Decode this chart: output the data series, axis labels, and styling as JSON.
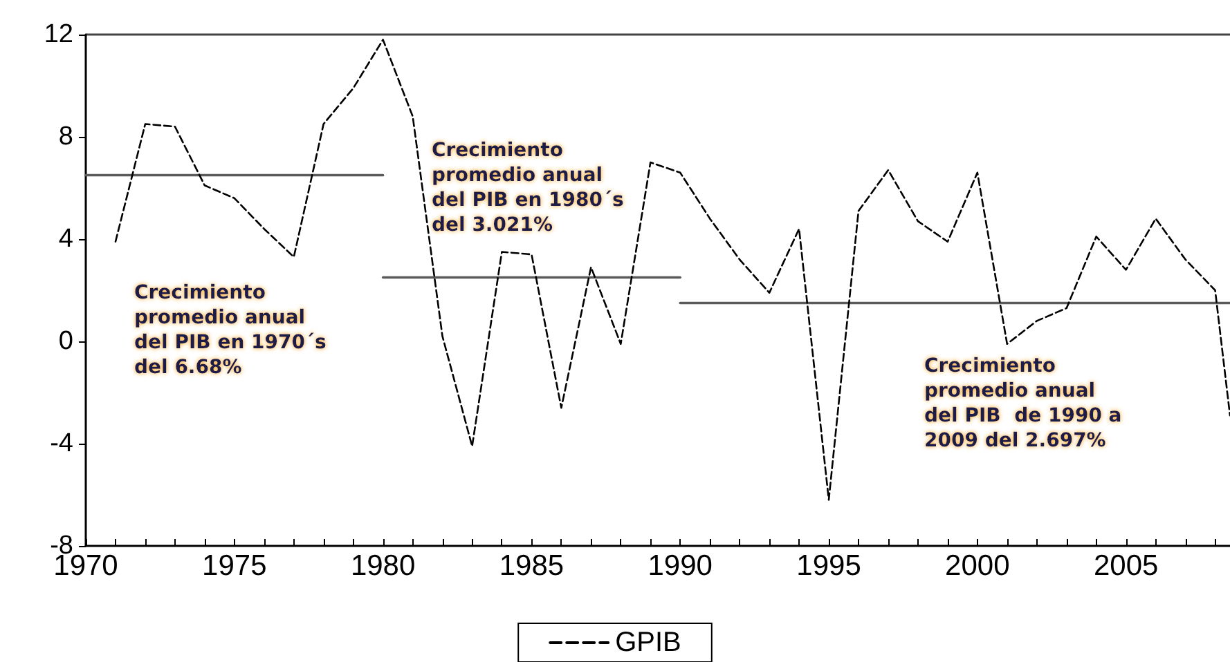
{
  "chart_data": {
    "type": "line",
    "x": [
      1971,
      1972,
      1973,
      1974,
      1975,
      1976,
      1977,
      1978,
      1979,
      1980,
      1981,
      1982,
      1983,
      1984,
      1985,
      1986,
      1987,
      1988,
      1989,
      1990,
      1991,
      1992,
      1993,
      1994,
      1995,
      1996,
      1997,
      1998,
      1999,
      2000,
      2001,
      2002,
      2003,
      2004,
      2005,
      2006,
      2007,
      2008,
      2008.5
    ],
    "series": [
      {
        "name": "GPIB",
        "color": "#000000",
        "line_style": "dashed",
        "values": [
          3.9,
          8.5,
          8.4,
          6.1,
          5.6,
          4.4,
          3.3,
          8.5,
          9.9,
          11.8,
          8.8,
          0.2,
          -4.1,
          3.5,
          3.4,
          -2.6,
          2.9,
          -0.1,
          7.0,
          6.6,
          4.8,
          3.2,
          1.9,
          4.4,
          -6.2,
          5.1,
          6.7,
          4.7,
          3.9,
          6.6,
          -0.1,
          0.8,
          1.3,
          4.1,
          2.8,
          4.8,
          3.2,
          2.0,
          -2.9
        ]
      },
      {
        "color": "#5a5a5a",
        "line_style": "solid",
        "x": [
          1970,
          1980
        ],
        "values": [
          6.5,
          6.5
        ]
      },
      {
        "color": "#5a5a5a",
        "line_style": "solid",
        "x": [
          1980,
          1990
        ],
        "values": [
          2.5,
          2.5
        ]
      },
      {
        "color": "#5a5a5a",
        "line_style": "solid",
        "x": [
          1990,
          2008.5
        ],
        "values": [
          1.5,
          1.5
        ]
      }
    ],
    "annotations": [
      "Crecimiento\npromedio anual\ndel PIB en 1970´s\ndel 6.68%",
      "Crecimiento\npromedio anual\ndel PIB en 1980´s\ndel 3.021%",
      "Crecimiento\npromedio anual\ndel PIB  de 1990 a\n2009 del 2.697%"
    ],
    "xlim": [
      1970,
      2008.5
    ],
    "xticks": [
      1970,
      {
        "value": 1971,
        "label": null
      },
      {
        "value": 1972,
        "label": null
      },
      {
        "value": 1973,
        "label": null
      },
      {
        "value": 1974,
        "label": null
      },
      1975,
      {
        "value": 1976,
        "label": null
      },
      {
        "value": 1977,
        "label": null
      },
      {
        "value": 1978,
        "label": null
      },
      {
        "value": 1979,
        "label": null
      },
      1980,
      {
        "value": 1981,
        "label": null
      },
      {
        "value": 1982,
        "label": null
      },
      {
        "value": 1983,
        "label": null
      },
      {
        "value": 1984,
        "label": null
      },
      1985,
      {
        "value": 1986,
        "label": null
      },
      {
        "value": 1987,
        "label": null
      },
      {
        "value": 1988,
        "label": null
      },
      {
        "value": 1989,
        "label": null
      },
      1990,
      {
        "value": 1991,
        "label": null
      },
      {
        "value": 1992,
        "label": null
      },
      {
        "value": 1993,
        "label": null
      },
      {
        "value": 1994,
        "label": null
      },
      1995,
      {
        "value": 1996,
        "label": null
      },
      {
        "value": 1997,
        "label": null
      },
      {
        "value": 1998,
        "label": null
      },
      {
        "value": 1999,
        "label": null
      },
      2000,
      {
        "value": 2001,
        "label": null
      },
      {
        "value": 2002,
        "label": null
      },
      {
        "value": 2003,
        "label": null
      },
      {
        "value": 2004,
        "label": null
      },
      2005,
      {
        "value": 2006,
        "label": null
      },
      {
        "value": 2007,
        "label": null
      },
      {
        "value": 2008,
        "label": null
      }
    ],
    "ylim": [
      -8,
      12
    ],
    "yticks": [
      -8,
      -4,
      0,
      4,
      8,
      12
    ],
    "grid": false,
    "legend": "bottom",
    "marker": "none"
  }
}
